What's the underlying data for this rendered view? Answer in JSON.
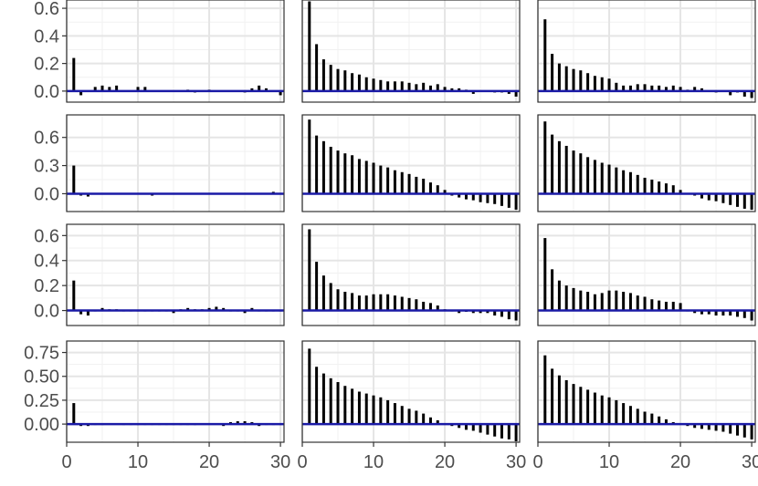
{
  "colors": {
    "bar": "#000000",
    "zero_line": "#1a1aa6",
    "grid": "#e5e5e5",
    "border": "#333333"
  },
  "chart_data": {
    "type": "bar",
    "layout": "facet-grid-4x3",
    "x_ticks": [
      "0",
      "10",
      "20",
      "30"
    ],
    "xlim": [
      0,
      30.5
    ],
    "lags": [
      1,
      2,
      3,
      4,
      5,
      6,
      7,
      8,
      9,
      10,
      11,
      12,
      13,
      14,
      15,
      16,
      17,
      18,
      19,
      20,
      21,
      22,
      23,
      24,
      25,
      26,
      27,
      28,
      29,
      30
    ],
    "grid": true,
    "rows": [
      {
        "ylim": [
          -0.08,
          0.66
        ],
        "y_ticks": [
          0.0,
          0.2,
          0.4,
          0.6
        ],
        "y_tick_labels": [
          "0.0",
          "0.2",
          "0.4",
          "0.6"
        ],
        "panels": [
          {
            "values": [
              0.24,
              -0.03,
              0.0,
              0.03,
              0.04,
              0.03,
              0.04,
              0.0,
              0.0,
              0.03,
              0.03,
              0.0,
              0.0,
              0.0,
              0.0,
              0.0,
              0.01,
              -0.01,
              0.0,
              0.01,
              0.0,
              0.0,
              0.0,
              0.0,
              -0.01,
              0.02,
              0.04,
              0.02,
              0.0,
              -0.03
            ]
          },
          {
            "values": [
              0.65,
              0.34,
              0.23,
              0.19,
              0.16,
              0.15,
              0.13,
              0.12,
              0.1,
              0.09,
              0.08,
              0.07,
              0.07,
              0.07,
              0.06,
              0.05,
              0.06,
              0.04,
              0.05,
              0.03,
              0.02,
              0.02,
              0.01,
              -0.02,
              0.0,
              0.0,
              -0.01,
              -0.01,
              -0.02,
              -0.04
            ]
          },
          {
            "values": [
              0.52,
              0.27,
              0.2,
              0.18,
              0.16,
              0.15,
              0.13,
              0.11,
              0.1,
              0.09,
              0.06,
              0.04,
              0.04,
              0.05,
              0.05,
              0.04,
              0.04,
              0.03,
              0.04,
              0.03,
              0.01,
              0.03,
              0.02,
              0.0,
              -0.01,
              0.0,
              -0.03,
              -0.01,
              -0.04,
              -0.05
            ]
          }
        ]
      },
      {
        "ylim": [
          -0.19,
          0.84
        ],
        "y_ticks": [
          0.0,
          0.3,
          0.6
        ],
        "y_tick_labels": [
          "0.0",
          "0.3",
          "0.6"
        ],
        "panels": [
          {
            "values": [
              0.3,
              -0.02,
              -0.03,
              0.0,
              0.0,
              0.0,
              0.0,
              0.0,
              0.0,
              0.0,
              0.0,
              -0.02,
              0.0,
              0.0,
              0.0,
              0.0,
              0.0,
              0.0,
              0.0,
              0.0,
              0.0,
              0.0,
              0.0,
              0.0,
              0.0,
              0.0,
              0.0,
              0.0,
              0.02,
              0.0
            ]
          },
          {
            "values": [
              0.79,
              0.62,
              0.56,
              0.5,
              0.46,
              0.43,
              0.41,
              0.37,
              0.35,
              0.33,
              0.3,
              0.28,
              0.25,
              0.23,
              0.21,
              0.18,
              0.16,
              0.12,
              0.09,
              0.04,
              -0.02,
              -0.04,
              -0.06,
              -0.07,
              -0.09,
              -0.1,
              -0.11,
              -0.13,
              -0.15,
              -0.17
            ]
          },
          {
            "values": [
              0.77,
              0.63,
              0.56,
              0.51,
              0.46,
              0.43,
              0.39,
              0.36,
              0.33,
              0.31,
              0.28,
              0.25,
              0.23,
              0.2,
              0.17,
              0.15,
              0.13,
              0.11,
              0.09,
              0.04,
              0.0,
              -0.02,
              -0.05,
              -0.07,
              -0.08,
              -0.1,
              -0.12,
              -0.14,
              -0.16,
              -0.17
            ]
          }
        ]
      },
      {
        "ylim": [
          -0.12,
          0.69
        ],
        "y_ticks": [
          0.0,
          0.2,
          0.4,
          0.6
        ],
        "y_tick_labels": [
          "0.0",
          "0.2",
          "0.4",
          "0.6"
        ],
        "panels": [
          {
            "values": [
              0.24,
              -0.03,
              -0.04,
              0.0,
              0.02,
              0.01,
              0.01,
              0.0,
              0.0,
              0.0,
              0.0,
              0.0,
              0.0,
              0.0,
              -0.02,
              0.01,
              0.02,
              0.01,
              0.01,
              0.02,
              0.03,
              0.02,
              0.0,
              0.0,
              -0.02,
              0.02,
              0.0,
              0.0,
              0.0,
              0.0
            ]
          },
          {
            "values": [
              0.65,
              0.39,
              0.28,
              0.22,
              0.17,
              0.15,
              0.14,
              0.12,
              0.12,
              0.13,
              0.13,
              0.13,
              0.12,
              0.11,
              0.1,
              0.09,
              0.07,
              0.06,
              0.04,
              0.01,
              0.0,
              -0.02,
              -0.01,
              -0.02,
              -0.02,
              -0.02,
              -0.04,
              -0.05,
              -0.07,
              -0.08
            ]
          },
          {
            "values": [
              0.58,
              0.33,
              0.24,
              0.2,
              0.18,
              0.16,
              0.15,
              0.13,
              0.14,
              0.16,
              0.16,
              0.15,
              0.14,
              0.12,
              0.11,
              0.09,
              0.08,
              0.07,
              0.07,
              0.06,
              0.0,
              -0.02,
              -0.03,
              -0.03,
              -0.04,
              -0.04,
              -0.04,
              -0.05,
              -0.06,
              -0.08
            ]
          }
        ]
      },
      {
        "ylim": [
          -0.19,
          0.87
        ],
        "y_ticks": [
          0.0,
          0.25,
          0.5,
          0.75
        ],
        "y_tick_labels": [
          "0.00",
          "0.25",
          "0.50",
          "0.75"
        ],
        "panels": [
          {
            "values": [
              0.22,
              -0.02,
              -0.02,
              0.0,
              0.0,
              0.01,
              0.01,
              0.0,
              0.0,
              0.0,
              0.0,
              0.0,
              0.0,
              0.0,
              0.0,
              0.0,
              0.0,
              -0.01,
              0.01,
              0.01,
              0.01,
              -0.02,
              0.02,
              0.03,
              0.03,
              0.02,
              -0.02,
              0.0,
              0.0,
              0.0
            ]
          },
          {
            "values": [
              0.79,
              0.6,
              0.53,
              0.48,
              0.44,
              0.4,
              0.37,
              0.34,
              0.32,
              0.3,
              0.28,
              0.25,
              0.22,
              0.19,
              0.16,
              0.14,
              0.11,
              0.07,
              0.04,
              0.01,
              -0.02,
              -0.04,
              -0.06,
              -0.07,
              -0.09,
              -0.11,
              -0.13,
              -0.15,
              -0.16,
              -0.18
            ]
          },
          {
            "values": [
              0.72,
              0.58,
              0.51,
              0.46,
              0.42,
              0.39,
              0.36,
              0.33,
              0.3,
              0.28,
              0.25,
              0.22,
              0.19,
              0.16,
              0.13,
              0.11,
              0.08,
              0.05,
              0.02,
              0.01,
              -0.02,
              -0.04,
              -0.05,
              -0.06,
              -0.07,
              -0.08,
              -0.1,
              -0.12,
              -0.14,
              -0.16
            ]
          }
        ]
      }
    ]
  }
}
